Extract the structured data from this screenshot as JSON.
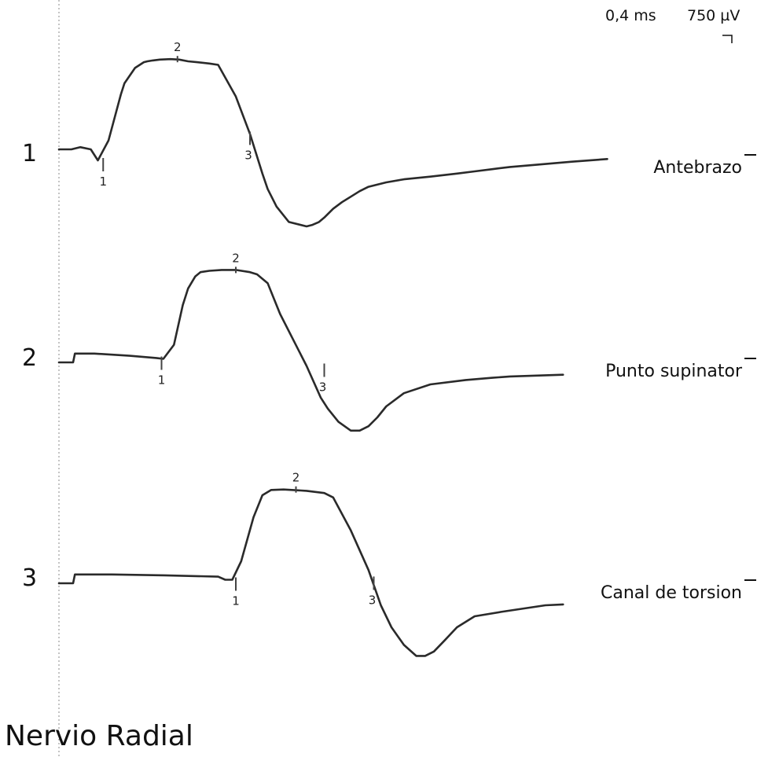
{
  "title": "Nervio Radial",
  "scale": {
    "time": "0,4 ms",
    "amplitude": "750 µV"
  },
  "chart_data": {
    "type": "line",
    "title": "Nervio Radial",
    "xlabel": "",
    "ylabel": "",
    "x_scale_per_division": "0,4 ms",
    "y_scale_per_division": "750 µV",
    "grid": false,
    "legend": "row labels at right",
    "series": [
      {
        "index": "1",
        "name": "Antebrazo",
        "baseline_y": 0,
        "x": [
          0,
          7,
          12,
          18,
          22,
          28,
          35,
          37,
          43,
          48,
          50,
          53,
          57,
          63,
          68,
          73,
          78,
          85,
          90,
          100,
          108,
          115,
          118,
          123,
          130,
          140,
          143,
          147,
          150,
          155,
          160,
          166,
          170,
          175,
          185,
          195,
          210,
          225,
          235,
          245,
          255,
          270,
          290,
          310
        ],
        "y": [
          0,
          0,
          0.05,
          0,
          -0.25,
          0.2,
          1.25,
          1.5,
          1.85,
          1.98,
          2.0,
          2.02,
          2.04,
          2.05,
          2.04,
          2.0,
          1.98,
          1.95,
          1.92,
          1.2,
          0.35,
          -0.55,
          -0.9,
          -1.3,
          -1.65,
          -1.75,
          -1.72,
          -1.65,
          -1.55,
          -1.35,
          -1.2,
          -1.05,
          -0.95,
          -0.85,
          -0.75,
          -0.68,
          -0.62,
          -0.55,
          -0.5,
          -0.45,
          -0.4,
          -0.35,
          -0.28,
          -0.22
        ],
        "markers": [
          {
            "label": "1",
            "x": 25,
            "y": -0.25
          },
          {
            "label": "2",
            "x": 67,
            "y": 2.05
          },
          {
            "label": "3",
            "x": 108,
            "y": 0.35
          }
        ]
      },
      {
        "index": "2",
        "name": "Punto supinator",
        "baseline_y": 0,
        "x": [
          0,
          8,
          9,
          20,
          40,
          55,
          59,
          65,
          70,
          73,
          77,
          80,
          85,
          92,
          100,
          108,
          112,
          118,
          125,
          140,
          148,
          152,
          158,
          165,
          170,
          175,
          180,
          185,
          195,
          210,
          230,
          245,
          255,
          270,
          285
        ],
        "y": [
          0,
          0,
          0.2,
          0.2,
          0.15,
          0.1,
          0.08,
          0.4,
          1.3,
          1.68,
          1.95,
          2.05,
          2.08,
          2.1,
          2.1,
          2.05,
          2.0,
          1.8,
          1.1,
          -0.08,
          -0.8,
          -1.05,
          -1.35,
          -1.55,
          -1.55,
          -1.45,
          -1.25,
          -1.0,
          -0.7,
          -0.5,
          -0.4,
          -0.35,
          -0.32,
          -0.3,
          -0.28
        ],
        "markers": [
          {
            "label": "1",
            "x": 58,
            "y": 0.08
          },
          {
            "label": "2",
            "x": 100,
            "y": 2.1
          },
          {
            "label": "3",
            "x": 150,
            "y": -0.08
          }
        ]
      },
      {
        "index": "3",
        "name": "Canal de torsion",
        "baseline_y": 0,
        "x": [
          0,
          8,
          9,
          30,
          60,
          90,
          94,
          98,
          103,
          110,
          115,
          120,
          127,
          140,
          150,
          155,
          165,
          175,
          182,
          188,
          195,
          202,
          207,
          212,
          218,
          225,
          235,
          250,
          275,
          285
        ],
        "y": [
          0,
          0,
          0.2,
          0.2,
          0.18,
          0.15,
          0.08,
          0.08,
          0.5,
          1.5,
          2.0,
          2.12,
          2.13,
          2.1,
          2.05,
          1.95,
          1.2,
          0.3,
          -0.5,
          -1.0,
          -1.4,
          -1.65,
          -1.65,
          -1.55,
          -1.3,
          -1.0,
          -0.75,
          -0.65,
          -0.5,
          -0.48
        ],
        "markers": [
          {
            "label": "1",
            "x": 100,
            "y": 0.08
          },
          {
            "label": "2",
            "x": 134,
            "y": 2.13
          },
          {
            "label": "3",
            "x": 178,
            "y": 0.1
          }
        ]
      }
    ]
  }
}
